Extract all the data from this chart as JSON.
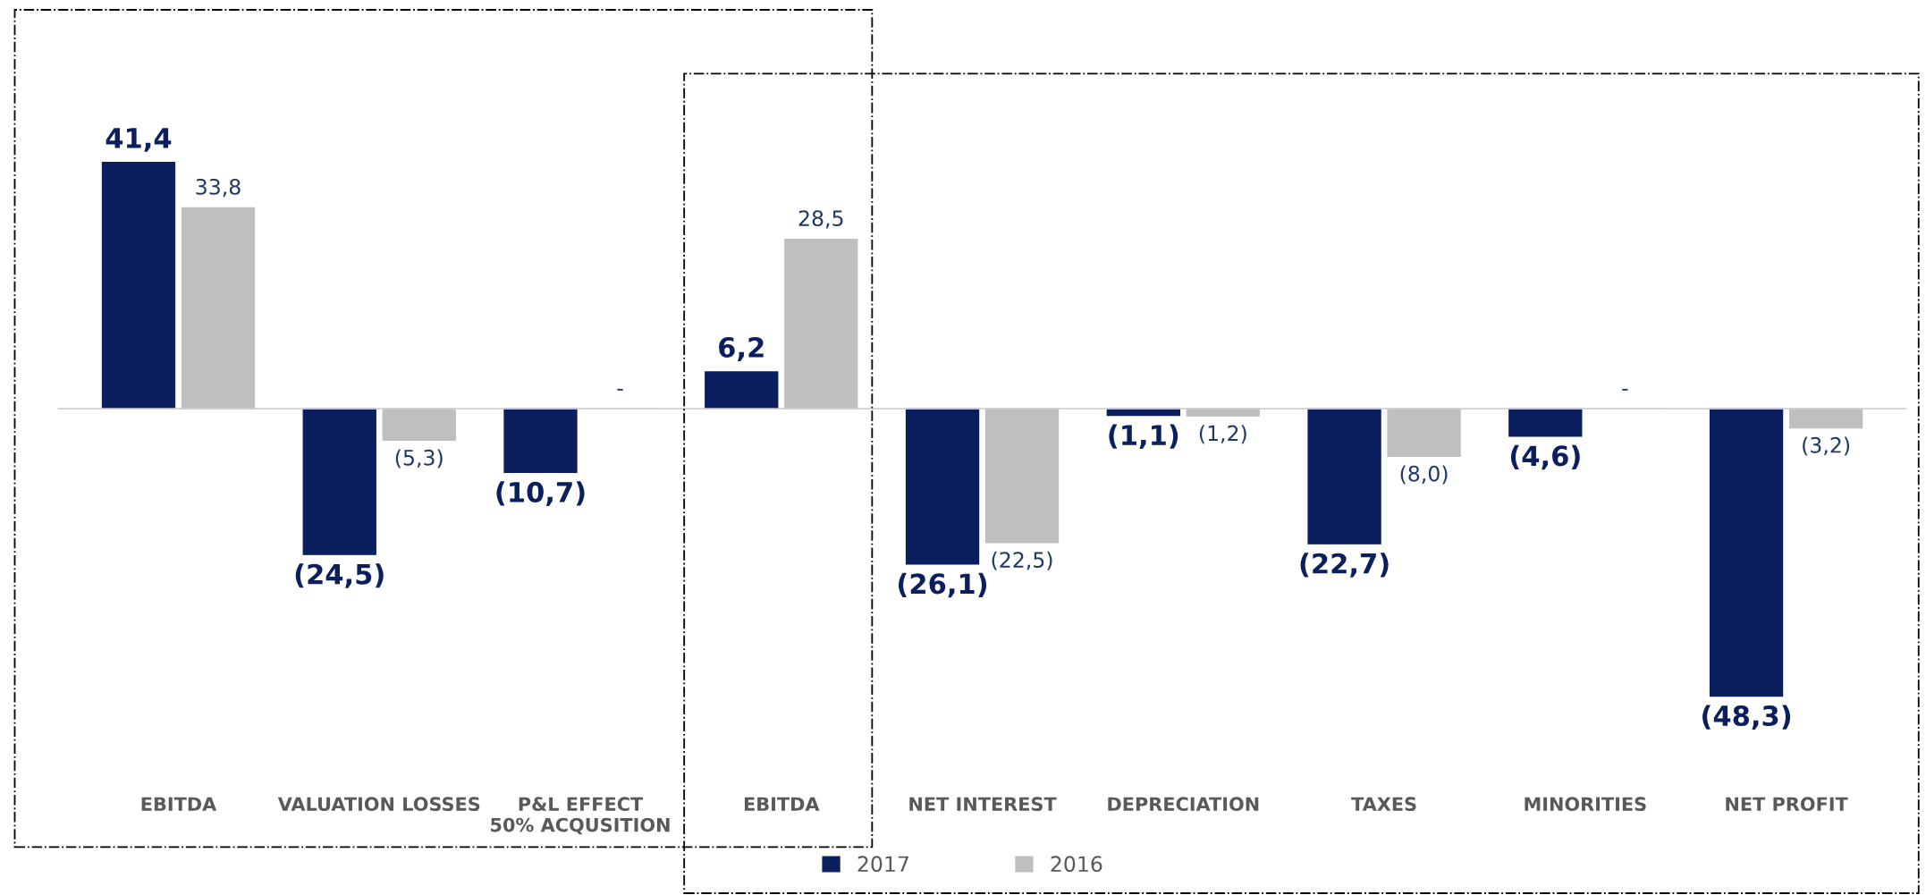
{
  "chart_data": {
    "type": "bar",
    "categories": [
      "EBITDA",
      "VALUATION LOSSES",
      "P&L EFFECT\n50% ACQUSITION",
      "EBITDA",
      "NET INTEREST",
      "DEPRECIATION",
      "TAXES",
      "MINORITIES",
      "NET PROFIT"
    ],
    "series": [
      {
        "name": "2017",
        "color": "#0b1f5e",
        "values": [
          41.4,
          -24.5,
          -10.7,
          6.2,
          -26.1,
          -1.1,
          -22.7,
          -4.6,
          -48.3
        ],
        "value_labels": [
          "41,4",
          "(24,5)",
          "(10,7)",
          "6,2",
          "(26,1)",
          "(1,1)",
          "(22,7)",
          "(4,6)",
          "(48,3)"
        ]
      },
      {
        "name": "2016",
        "color": "#bfbfbf",
        "values": [
          33.8,
          -5.3,
          0,
          28.5,
          -22.5,
          -1.2,
          -8.0,
          0,
          -3.2
        ],
        "value_labels": [
          "33,8",
          "(5,3)",
          "-",
          "28,5",
          "(22,5)",
          "(1,2)",
          "(8,0)",
          "-",
          "(3,2)"
        ]
      }
    ],
    "legend": "bottom",
    "grid": false
  }
}
